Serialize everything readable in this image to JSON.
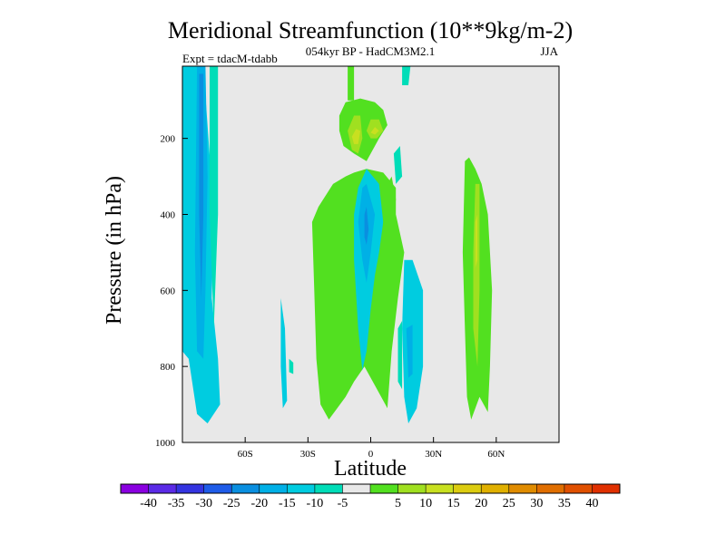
{
  "chart_data": {
    "type": "heatmap",
    "title": "Meridional Streamfunction (10**9kg/m-2)",
    "subtitle_center": "054kyr BP - HadCM3M2.1",
    "subtitle_left": "Expt = tdacM-tdabb",
    "subtitle_right": "JJA",
    "xlabel": "Latitude",
    "ylabel": "Pressure (in hPa)",
    "xlim": [
      -90,
      90
    ],
    "ylim": [
      1000,
      10
    ],
    "x_ticks": [
      {
        "value": -60,
        "label": "60S"
      },
      {
        "value": -30,
        "label": "30S"
      },
      {
        "value": 0,
        "label": "0"
      },
      {
        "value": 30,
        "label": "30N"
      },
      {
        "value": 60,
        "label": "60N"
      }
    ],
    "y_ticks": [
      {
        "value": 200,
        "label": "200"
      },
      {
        "value": 400,
        "label": "400"
      },
      {
        "value": 600,
        "label": "600"
      },
      {
        "value": 800,
        "label": "800"
      },
      {
        "value": 1000,
        "label": "1000"
      }
    ],
    "colorbar": {
      "colors": [
        "#8a00e0",
        "#5b2be6",
        "#3434e0",
        "#1f5ce8",
        "#0a8fe0",
        "#00b0e6",
        "#00cce0",
        "#00ddb8",
        "#e8e8e8",
        "#52e020",
        "#a0e020",
        "#c8e020",
        "#dccc10",
        "#e0b000",
        "#e08c00",
        "#e06e00",
        "#e05000",
        "#e03000"
      ],
      "labels": [
        "-40",
        "-35",
        "-30",
        "-25",
        "-20",
        "-15",
        "-10",
        "-5",
        "5",
        "10",
        "15",
        "20",
        "25",
        "30",
        "35",
        "40"
      ]
    },
    "regions": [
      {
        "name": "sh-polar-cell",
        "level": -10,
        "color": "#00cce0",
        "points": [
          [
            -90,
            10
          ],
          [
            -80,
            10
          ],
          [
            -75,
            400
          ],
          [
            -76,
            620
          ],
          [
            -73,
            780
          ],
          [
            -72,
            900
          ],
          [
            -78,
            950
          ],
          [
            -83,
            925
          ],
          [
            -87,
            780
          ],
          [
            -90,
            760
          ]
        ]
      },
      {
        "name": "sh-polar-core",
        "level": -15,
        "color": "#00b0e6",
        "points": [
          [
            -83,
            10
          ],
          [
            -79,
            10
          ],
          [
            -78,
            300
          ],
          [
            -79,
            600
          ],
          [
            -80,
            780
          ],
          [
            -83,
            760
          ],
          [
            -84,
            500
          ]
        ]
      },
      {
        "name": "sh-polar-center",
        "level": -20,
        "color": "#0a8fe0",
        "points": [
          [
            -82,
            30
          ],
          [
            -80,
            30
          ],
          [
            -80,
            400
          ],
          [
            -81,
            620
          ],
          [
            -82,
            400
          ]
        ]
      },
      {
        "name": "sh-polar-edge",
        "level": -5,
        "color": "#00ddb8",
        "points": [
          [
            -77,
            10
          ],
          [
            -73,
            10
          ],
          [
            -73,
            400
          ],
          [
            -75,
            700
          ],
          [
            -77,
            400
          ]
        ]
      },
      {
        "name": "sh-midlat-cyan",
        "level": -10,
        "color": "#00cce0",
        "points": [
          [
            -43,
            620
          ],
          [
            -41,
            700
          ],
          [
            -40,
            890
          ],
          [
            -42,
            910
          ],
          [
            -43,
            800
          ]
        ]
      },
      {
        "name": "sh-midlat-cyan-2",
        "level": -5,
        "color": "#00ddb8",
        "points": [
          [
            -39,
            780
          ],
          [
            -37,
            790
          ],
          [
            -37,
            820
          ],
          [
            -39,
            815
          ]
        ]
      },
      {
        "name": "tropical-green-wide",
        "level": 10,
        "color": "#52e020",
        "points": [
          [
            -28,
            420
          ],
          [
            -25,
            380
          ],
          [
            -18,
            320
          ],
          [
            -12,
            300
          ],
          [
            -8,
            290
          ],
          [
            -2,
            280
          ],
          [
            6,
            290
          ],
          [
            12,
            330
          ],
          [
            12,
            400
          ],
          [
            16,
            500
          ],
          [
            13,
            620
          ],
          [
            10,
            760
          ],
          [
            8,
            910
          ],
          [
            3,
            860
          ],
          [
            -3,
            800
          ],
          [
            -8,
            840
          ],
          [
            -12,
            880
          ],
          [
            -20,
            940
          ],
          [
            -24,
            900
          ],
          [
            -26,
            780
          ],
          [
            -27,
            600
          ]
        ]
      },
      {
        "name": "tropical-upper-green",
        "level": 10,
        "color": "#52e020",
        "points": [
          [
            -15,
            140
          ],
          [
            -12,
            105
          ],
          [
            -5,
            95
          ],
          [
            2,
            105
          ],
          [
            6,
            125
          ],
          [
            8,
            165
          ],
          [
            4,
            200
          ],
          [
            -2,
            260
          ],
          [
            -8,
            240
          ],
          [
            -13,
            220
          ],
          [
            -15,
            180
          ]
        ]
      },
      {
        "name": "tropical-upper-column",
        "level": 10,
        "color": "#52e020",
        "points": [
          [
            -11,
            10
          ],
          [
            -8,
            10
          ],
          [
            -8,
            100
          ],
          [
            -11,
            100
          ]
        ]
      },
      {
        "name": "upper-yellow-left",
        "level": 15,
        "color": "#a0e020",
        "points": [
          [
            -11,
            180
          ],
          [
            -8,
            140
          ],
          [
            -5,
            140
          ],
          [
            -4,
            200
          ],
          [
            -6,
            240
          ],
          [
            -9,
            230
          ]
        ]
      },
      {
        "name": "upper-yellow-right",
        "level": 15,
        "color": "#a0e020",
        "points": [
          [
            -2,
            180
          ],
          [
            0,
            150
          ],
          [
            4,
            150
          ],
          [
            6,
            180
          ],
          [
            3,
            200
          ],
          [
            0,
            200
          ]
        ]
      },
      {
        "name": "upper-core-left",
        "level": 20,
        "color": "#c8e020",
        "points": [
          [
            -9,
            195
          ],
          [
            -7,
            175
          ],
          [
            -5,
            180
          ],
          [
            -6,
            215
          ],
          [
            -8,
            215
          ]
        ]
      },
      {
        "name": "upper-core-right",
        "level": 20,
        "color": "#c8e020",
        "points": [
          [
            0,
            185
          ],
          [
            2,
            170
          ],
          [
            4,
            180
          ],
          [
            2,
            190
          ]
        ]
      },
      {
        "name": "tropical-cyan",
        "level": -10,
        "color": "#00cce0",
        "points": [
          [
            -6,
            330
          ],
          [
            -2,
            280
          ],
          [
            4,
            320
          ],
          [
            6,
            420
          ],
          [
            4,
            500
          ],
          [
            2,
            560
          ],
          [
            0,
            650
          ],
          [
            -2,
            760
          ],
          [
            -4,
            810
          ],
          [
            -6,
            700
          ],
          [
            -8,
            520
          ],
          [
            -8,
            400
          ]
        ]
      },
      {
        "name": "tropical-cyan-core",
        "level": -15,
        "color": "#00b0e6",
        "points": [
          [
            -4,
            330
          ],
          [
            -2,
            320
          ],
          [
            2,
            400
          ],
          [
            0,
            500
          ],
          [
            -2,
            580
          ],
          [
            -4,
            520
          ],
          [
            -6,
            420
          ]
        ]
      },
      {
        "name": "tropical-cyan-center",
        "level": -20,
        "color": "#0a8fe0",
        "points": [
          [
            -3,
            400
          ],
          [
            -2,
            380
          ],
          [
            -1,
            440
          ],
          [
            -2,
            480
          ],
          [
            -3,
            460
          ]
        ]
      },
      {
        "name": "nh-tropical-green-column",
        "level": 10,
        "color": "#52e020",
        "points": [
          [
            6,
            340
          ],
          [
            10,
            300
          ],
          [
            12,
            360
          ],
          [
            10,
            500
          ],
          [
            8,
            560
          ],
          [
            6,
            500
          ]
        ]
      },
      {
        "name": "nh-upper-cyan",
        "level": -5,
        "color": "#00ddb8",
        "points": [
          [
            15,
            10
          ],
          [
            19,
            10
          ],
          [
            18,
            60
          ],
          [
            15,
            60
          ]
        ]
      },
      {
        "name": "nh-upper-cyan-2",
        "level": -5,
        "color": "#00ddb8",
        "points": [
          [
            11,
            240
          ],
          [
            14,
            220
          ],
          [
            15,
            300
          ],
          [
            12,
            320
          ]
        ]
      },
      {
        "name": "nh-subtropical-cyan",
        "level": -10,
        "color": "#00cce0",
        "points": [
          [
            16,
            520
          ],
          [
            20,
            520
          ],
          [
            25,
            600
          ],
          [
            25,
            800
          ],
          [
            22,
            910
          ],
          [
            18,
            950
          ],
          [
            16,
            880
          ],
          [
            15,
            700
          ]
        ]
      },
      {
        "name": "nh-subtropical-edge",
        "level": -5,
        "color": "#00ddb8",
        "points": [
          [
            13,
            700
          ],
          [
            15,
            680
          ],
          [
            15,
            860
          ],
          [
            13,
            840
          ]
        ]
      },
      {
        "name": "nh-subtropical-core",
        "level": -15,
        "color": "#00b0e6",
        "points": [
          [
            17,
            700
          ],
          [
            20,
            690
          ],
          [
            20,
            820
          ],
          [
            18,
            830
          ]
        ]
      },
      {
        "name": "nh-midlat-green",
        "level": 10,
        "color": "#52e020",
        "points": [
          [
            45,
            260
          ],
          [
            47,
            250
          ],
          [
            50,
            280
          ],
          [
            53,
            320
          ],
          [
            56,
            400
          ],
          [
            58,
            600
          ],
          [
            57,
            800
          ],
          [
            56,
            920
          ],
          [
            52,
            880
          ],
          [
            48,
            940
          ],
          [
            46,
            880
          ],
          [
            45,
            700
          ],
          [
            44,
            500
          ]
        ]
      },
      {
        "name": "nh-midlat-yellow",
        "level": 15,
        "color": "#a0e020",
        "points": [
          [
            50,
            320
          ],
          [
            52,
            320
          ],
          [
            52,
            600
          ],
          [
            51,
            800
          ],
          [
            49,
            700
          ],
          [
            49,
            500
          ]
        ]
      },
      {
        "name": "nh-midlat-core",
        "level": 20,
        "color": "#c8e020",
        "points": [
          [
            50,
            420
          ],
          [
            51,
            400
          ],
          [
            51,
            520
          ],
          [
            50,
            540
          ]
        ]
      }
    ]
  }
}
